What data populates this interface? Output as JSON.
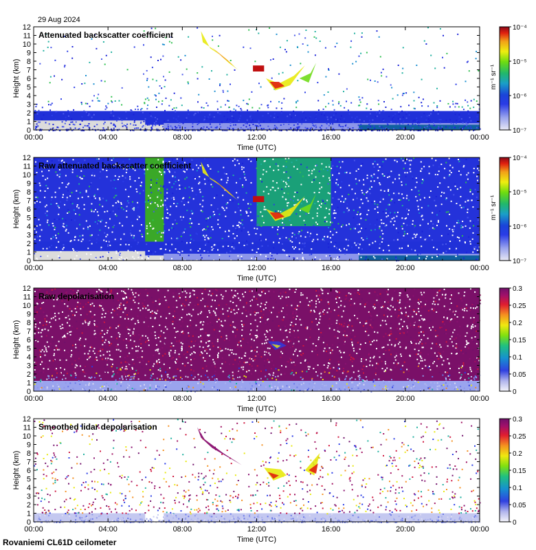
{
  "header": {
    "date": "29 Aug 2024"
  },
  "footer": {
    "instrument": "Rovaniemi CL61D ceilometer"
  },
  "colors": {
    "background_grey": "#dcdcdc",
    "clear_air": "#ffffff"
  },
  "chart_data": [
    {
      "type": "heatmap",
      "title": "Attenuated backscatter coefficient",
      "xlabel": "Time (UTC)",
      "ylabel": "Height (km)",
      "x_ticks": [
        "00:00",
        "04:00",
        "08:00",
        "12:00",
        "16:00",
        "20:00",
        "00:00"
      ],
      "y_ticks": [
        "0",
        "1",
        "2",
        "3",
        "4",
        "5",
        "6",
        "7",
        "8",
        "9",
        "10",
        "11",
        "12"
      ],
      "ylim": [
        0,
        12
      ],
      "colorbar": {
        "scale": "log",
        "unit": "m⁻¹ sr⁻¹",
        "ticks": [
          "10⁻⁷",
          "10⁻⁶",
          "10⁻⁵",
          "10⁻⁴"
        ]
      }
    },
    {
      "type": "heatmap",
      "title": "Raw attenuated backscatter coefficient",
      "xlabel": "Time (UTC)",
      "ylabel": "Height (km)",
      "x_ticks": [
        "00:00",
        "04:00",
        "08:00",
        "12:00",
        "16:00",
        "20:00",
        "00:00"
      ],
      "y_ticks": [
        "0",
        "1",
        "2",
        "3",
        "4",
        "5",
        "6",
        "7",
        "8",
        "9",
        "10",
        "11",
        "12"
      ],
      "ylim": [
        0,
        12
      ],
      "colorbar": {
        "scale": "log",
        "unit": "m⁻¹ sr⁻¹",
        "ticks": [
          "10⁻⁷",
          "10⁻⁶",
          "10⁻⁵",
          "10⁻⁴"
        ]
      }
    },
    {
      "type": "heatmap",
      "title": "Raw depolarisation",
      "xlabel": "Time (UTC)",
      "ylabel": "Height (km)",
      "x_ticks": [
        "00:00",
        "04:00",
        "08:00",
        "12:00",
        "16:00",
        "20:00",
        "00:00"
      ],
      "y_ticks": [
        "0",
        "1",
        "2",
        "3",
        "4",
        "5",
        "6",
        "7",
        "8",
        "9",
        "10",
        "11",
        "12"
      ],
      "ylim": [
        0,
        12
      ],
      "colorbar": {
        "scale": "linear",
        "unit": "",
        "ticks": [
          "0",
          "0.05",
          "0.1",
          "0.15",
          "0.2",
          "0.25",
          "0.3"
        ]
      }
    },
    {
      "type": "heatmap",
      "title": "Smoothed lidar depolarisation",
      "xlabel": "Time (UTC)",
      "ylabel": "Height (km)",
      "x_ticks": [
        "00:00",
        "04:00",
        "08:00",
        "12:00",
        "16:00",
        "20:00",
        "00:00"
      ],
      "y_ticks": [
        "0",
        "1",
        "2",
        "3",
        "4",
        "5",
        "6",
        "7",
        "8",
        "9",
        "10",
        "11",
        "12"
      ],
      "ylim": [
        0,
        12
      ],
      "colorbar": {
        "scale": "linear",
        "unit": "",
        "ticks": [
          "0",
          "0.05",
          "0.1",
          "0.15",
          "0.2",
          "0.25",
          "0.3"
        ]
      }
    }
  ]
}
